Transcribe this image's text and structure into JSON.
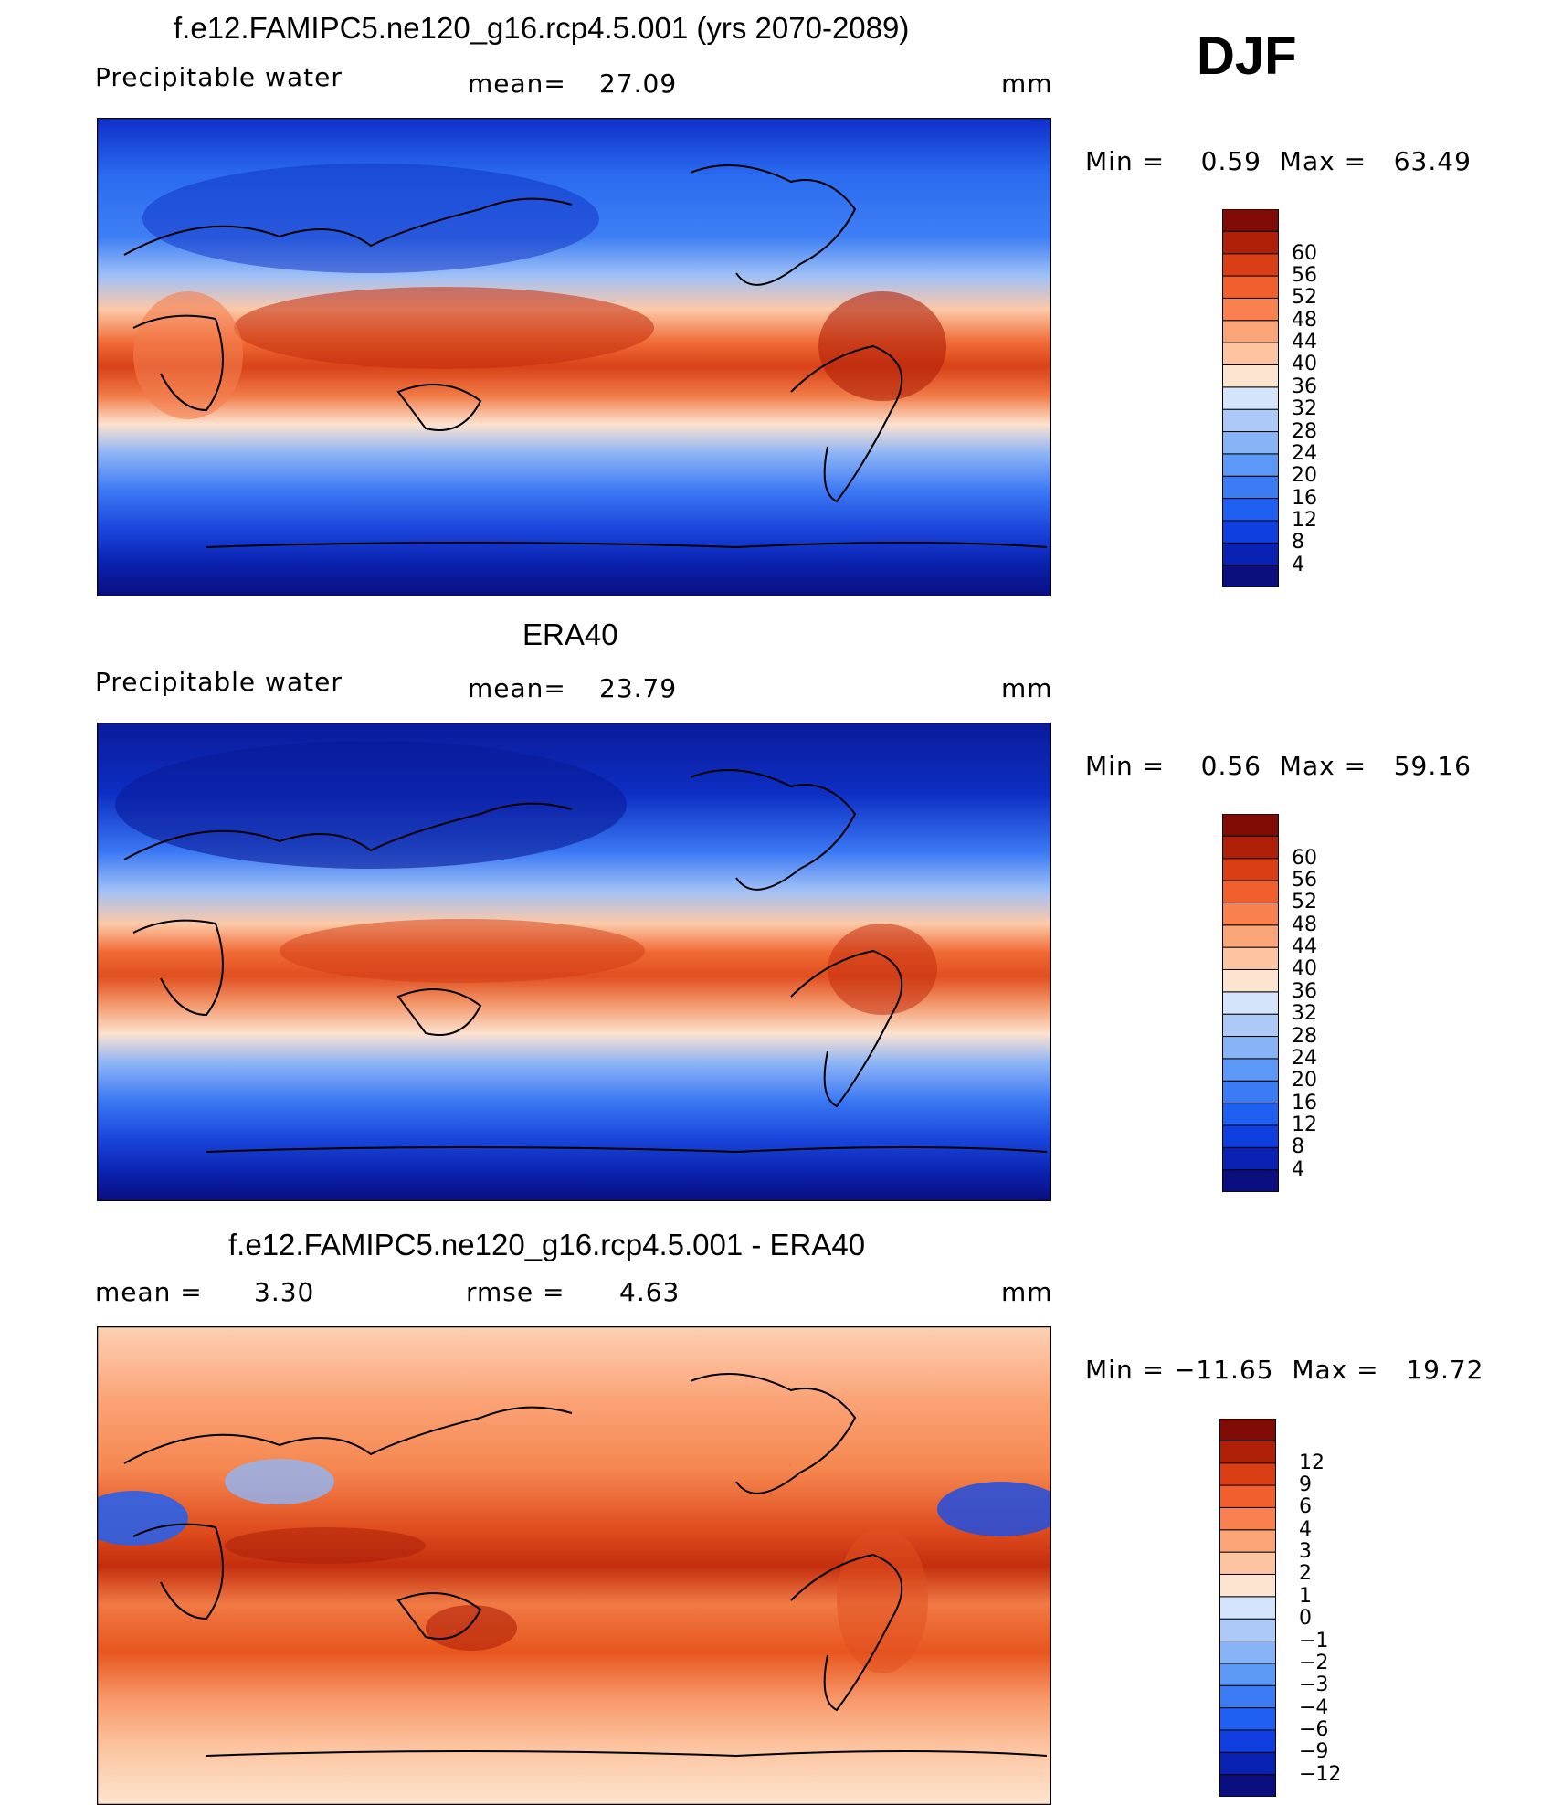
{
  "season": "DJF",
  "panels": [
    {
      "title": "f.e12.FAMIPC5.ne120_g16.rcp4.5.001 (yrs 2070-2089)",
      "field": "Precipitable water",
      "stat1_label": "mean=",
      "stat1_value": "27.09",
      "units": "mm",
      "minmax": "Min =    0.59  Max =   63.49",
      "colorbar": {
        "colors": [
          "#0a0e7e",
          "#0a22b4",
          "#0f3fe0",
          "#1f5ff2",
          "#3b7cf5",
          "#5c98f6",
          "#86b4f7",
          "#adc9f8",
          "#d3e4fb",
          "#fde4d0",
          "#fcc4a0",
          "#fba478",
          "#f8814f",
          "#f05f2c",
          "#da3e14",
          "#b01f08",
          "#800b05"
        ],
        "ticks": [
          "4",
          "8",
          "12",
          "16",
          "20",
          "24",
          "28",
          "32",
          "36",
          "40",
          "44",
          "48",
          "52",
          "56",
          "60"
        ]
      },
      "chart_data": {
        "type": "heatmap",
        "variable": "Precipitable water",
        "units": "mm",
        "mean": 27.09,
        "min": 0.59,
        "max": 63.49,
        "levels": [
          4,
          8,
          12,
          16,
          20,
          24,
          28,
          32,
          36,
          40,
          44,
          48,
          52,
          56,
          60
        ],
        "domain": "global lat-lon"
      }
    },
    {
      "title": "ERA40",
      "field": "Precipitable water",
      "stat1_label": "mean=",
      "stat1_value": "23.79",
      "units": "mm",
      "minmax": "Min =    0.56  Max =   59.16",
      "colorbar": {
        "colors": [
          "#0a0e7e",
          "#0a22b4",
          "#0f3fe0",
          "#1f5ff2",
          "#3b7cf5",
          "#5c98f6",
          "#86b4f7",
          "#adc9f8",
          "#d3e4fb",
          "#fde4d0",
          "#fcc4a0",
          "#fba478",
          "#f8814f",
          "#f05f2c",
          "#da3e14",
          "#b01f08",
          "#800b05"
        ],
        "ticks": [
          "4",
          "8",
          "12",
          "16",
          "20",
          "24",
          "28",
          "32",
          "36",
          "40",
          "44",
          "48",
          "52",
          "56",
          "60"
        ]
      },
      "chart_data": {
        "type": "heatmap",
        "variable": "Precipitable water",
        "units": "mm",
        "mean": 23.79,
        "min": 0.56,
        "max": 59.16,
        "levels": [
          4,
          8,
          12,
          16,
          20,
          24,
          28,
          32,
          36,
          40,
          44,
          48,
          52,
          56,
          60
        ],
        "domain": "global lat-lon"
      }
    },
    {
      "title": "f.e12.FAMIPC5.ne120_g16.rcp4.5.001 - ERA40",
      "stat1_label": "mean =",
      "stat1_value": "3.30",
      "stat2_label": "rmse =",
      "stat2_value": "4.63",
      "units": "mm",
      "minmax": "Min = −11.65  Max =   19.72",
      "colorbar": {
        "colors": [
          "#0a0e7e",
          "#0a22b4",
          "#0f3fe0",
          "#1f5ff2",
          "#3b7cf5",
          "#5c98f6",
          "#86b4f7",
          "#adc9f8",
          "#d3e4fb",
          "#fde4d0",
          "#fcc4a0",
          "#fba478",
          "#f8814f",
          "#f05f2c",
          "#da3e14",
          "#b01f08",
          "#800b05"
        ],
        "ticks": [
          "−12",
          "−9",
          "−6",
          "−4",
          "−3",
          "−2",
          "−1",
          "0",
          "1",
          "2",
          "3",
          "4",
          "6",
          "9",
          "12"
        ]
      },
      "chart_data": {
        "type": "heatmap",
        "variable": "Precipitable water difference",
        "units": "mm",
        "mean": 3.3,
        "rmse": 4.63,
        "min": -11.65,
        "max": 19.72,
        "levels": [
          -12,
          -9,
          -6,
          -4,
          -3,
          -2,
          -1,
          0,
          1,
          2,
          3,
          4,
          6,
          9,
          12
        ],
        "domain": "global lat-lon"
      }
    }
  ]
}
